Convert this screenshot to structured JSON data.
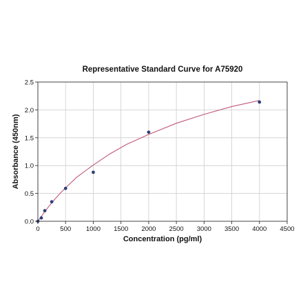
{
  "chart_data": {
    "type": "scatter",
    "title": "Representative Standard Curve for A75920",
    "xlabel": "Concentration (pg/ml)",
    "ylabel": "Absorbance (450nm)",
    "xlim": [
      0,
      4500
    ],
    "ylim": [
      0,
      2.5
    ],
    "x_ticks": [
      "0",
      "500",
      "1000",
      "1500",
      "2000",
      "2500",
      "3000",
      "3500",
      "4000",
      "4500"
    ],
    "y_ticks": [
      "0.0",
      "0.5",
      "1.0",
      "1.5",
      "2.0",
      "2.5"
    ],
    "grid": true,
    "series": [
      {
        "type": "scatter",
        "color": "#2e3f7a",
        "x": [
          0,
          62.5,
          125,
          250,
          500,
          1000,
          2000,
          4000
        ],
        "y": [
          0.0,
          0.06,
          0.19,
          0.35,
          0.59,
          0.88,
          1.6,
          2.14
        ]
      },
      {
        "type": "line",
        "color": "#c0577a",
        "x": [
          0,
          50,
          100,
          200,
          300,
          400,
          500,
          700,
          1000,
          1300,
          1600,
          2000,
          2500,
          3000,
          3500,
          4000
        ],
        "y": [
          0.0,
          0.07,
          0.14,
          0.27,
          0.39,
          0.5,
          0.6,
          0.79,
          1.01,
          1.21,
          1.38,
          1.56,
          1.76,
          1.92,
          2.06,
          2.17
        ]
      }
    ]
  }
}
